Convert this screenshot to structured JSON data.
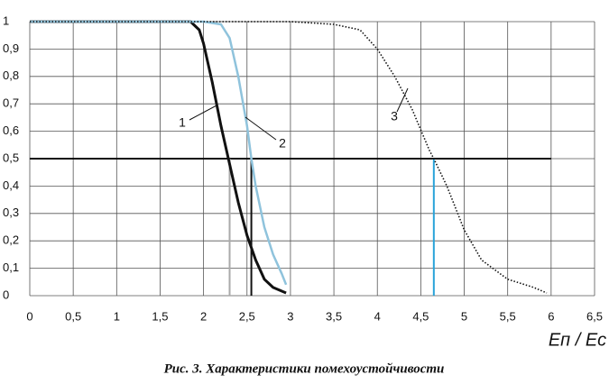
{
  "chart_data": {
    "type": "line",
    "x_label": "Eп / Eс",
    "caption": "Рис. 3. Характеристики помехоустойчивости",
    "xlim": [
      0,
      6.5
    ],
    "ylim": [
      0,
      1
    ],
    "xticks": [
      0,
      {
        "value": 0.5,
        "label": "0,5"
      },
      1,
      {
        "value": 1.5,
        "label": "1,5"
      },
      2,
      {
        "value": 2.5,
        "label": "2,5"
      },
      3,
      {
        "value": 3.5,
        "label": "3,5"
      },
      4,
      {
        "value": 4.5,
        "label": "4,5"
      },
      5,
      {
        "value": 5.5,
        "label": "5,5"
      },
      6,
      {
        "value": 6.5,
        "label": "6,5"
      }
    ],
    "yticks": [
      0,
      {
        "value": 0.1,
        "label": "0,1"
      },
      {
        "value": 0.2,
        "label": "0,2"
      },
      {
        "value": 0.3,
        "label": "0,3"
      },
      {
        "value": 0.4,
        "label": "0,4"
      },
      {
        "value": 0.5,
        "label": "0,5"
      },
      {
        "value": 0.6,
        "label": "0,6"
      },
      {
        "value": 0.7,
        "label": "0,7"
      },
      {
        "value": 0.8,
        "label": "0,8"
      },
      {
        "value": 0.9,
        "label": "0,9"
      },
      1
    ],
    "grid": true,
    "series": [
      {
        "color": "#111111",
        "line_style": "solid",
        "x": [
          0,
          1.85,
          1.95,
          2.0,
          2.1,
          2.2,
          2.3,
          2.4,
          2.5,
          2.6,
          2.7,
          2.8,
          2.95
        ],
        "values": [
          1,
          1,
          0.97,
          0.92,
          0.78,
          0.62,
          0.48,
          0.34,
          0.22,
          0.13,
          0.06,
          0.03,
          0.01
        ]
      },
      {
        "color": "#8fc3dc",
        "line_style": "solid",
        "x": [
          0,
          2.0,
          2.2,
          2.3,
          2.4,
          2.5,
          2.55,
          2.6,
          2.7,
          2.8,
          2.9,
          2.95
        ],
        "values": [
          1,
          1,
          0.99,
          0.94,
          0.8,
          0.62,
          0.5,
          0.4,
          0.25,
          0.15,
          0.08,
          0.04
        ]
      },
      {
        "color": "#111111",
        "line_style": "dotted",
        "x": [
          0,
          3.0,
          3.5,
          3.8,
          4.0,
          4.2,
          4.4,
          4.6,
          4.65,
          4.8,
          5.0,
          5.2,
          5.5,
          5.8,
          5.95
        ],
        "values": [
          1,
          1,
          0.99,
          0.97,
          0.9,
          0.8,
          0.68,
          0.53,
          0.5,
          0.4,
          0.24,
          0.13,
          0.06,
          0.03,
          0.01
        ]
      }
    ],
    "annotations": [
      "1",
      "2",
      "3"
    ],
    "hline": {
      "y": 0.5,
      "x": [
        0,
        6
      ],
      "color": "#111111"
    },
    "vlines": [
      {
        "x": 2.3,
        "y": [
          0,
          0.5
        ],
        "color": "#aaaaaa"
      },
      {
        "x": 2.55,
        "y": [
          0,
          0.5
        ],
        "color": "#111111"
      },
      {
        "x": 4.65,
        "y": [
          0,
          0.5
        ],
        "color": "#29a3d9"
      }
    ]
  }
}
